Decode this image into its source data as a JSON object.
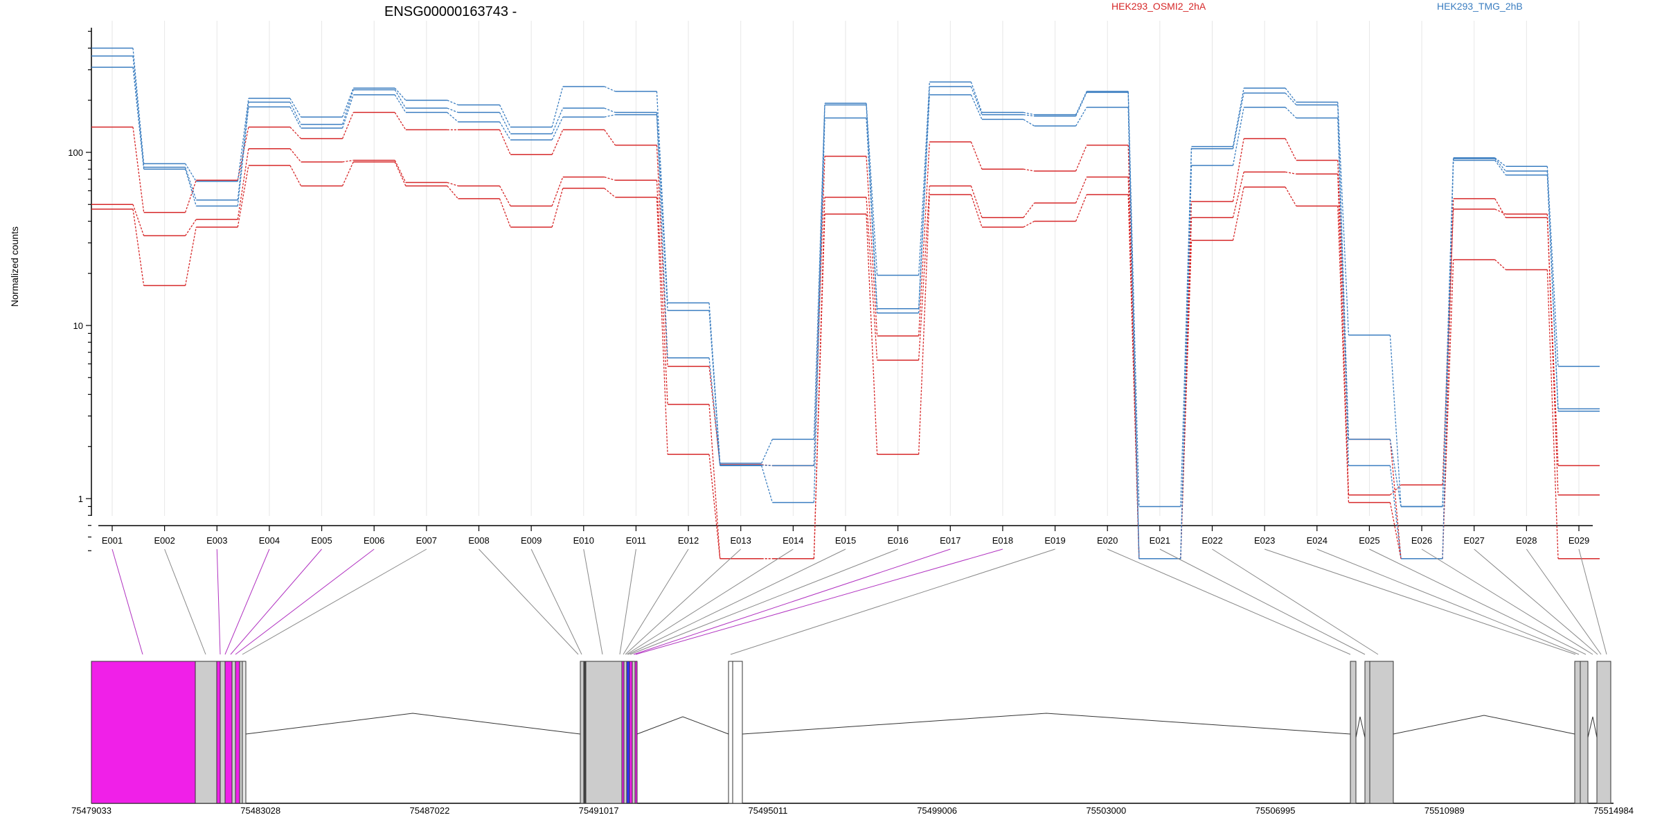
{
  "chart_data": {
    "type": "line",
    "title": "ENSG00000163743 -",
    "ylabel": "Normalized counts",
    "yscale": "log",
    "ylim": [
      0.45,
      500
    ],
    "yticks": [
      1,
      10,
      100
    ],
    "ytick_labels": [
      "1",
      "10",
      "100"
    ],
    "categories": [
      "E001",
      "E002",
      "E003",
      "E004",
      "E005",
      "E006",
      "E007",
      "E008",
      "E009",
      "E010",
      "E011",
      "E012",
      "E013",
      "E014",
      "E015",
      "E016",
      "E017",
      "E018",
      "E019",
      "E020",
      "E021",
      "E022",
      "E023",
      "E024",
      "E025",
      "E026",
      "E027",
      "E028",
      "E029"
    ],
    "legend": [
      {
        "name": "HEK293_OSMI2_2hA",
        "color": "#d62728"
      },
      {
        "name": "HEK293_TMG_2hB",
        "color": "#3a7dc0"
      }
    ],
    "series": [
      {
        "group": "HEK293_OSMI2_2hA",
        "color": "#d62728",
        "values": [
          140,
          45,
          69,
          140,
          120,
          170,
          135,
          135,
          97,
          135,
          110,
          5.8,
          1.57,
          1.55,
          95,
          8.7,
          115,
          80,
          78,
          110,
          0.45,
          52,
          120,
          90,
          2.2,
          0.45,
          54,
          42,
          1.55
        ]
      },
      {
        "group": "HEK293_OSMI2_2hA",
        "color": "#d62728",
        "values": [
          50,
          33,
          41,
          105,
          88,
          90,
          67,
          64,
          49,
          72,
          69,
          3.5,
          0.45,
          0.45,
          55,
          6.3,
          64,
          42,
          51,
          72,
          0.45,
          42,
          77,
          75,
          1.05,
          1.2,
          47,
          44,
          1.05
        ]
      },
      {
        "group": "HEK293_OSMI2_2hA",
        "color": "#d62728",
        "values": [
          47,
          17,
          37,
          84,
          64,
          88,
          64,
          54,
          37,
          62,
          55,
          1.8,
          0.45,
          0.45,
          44,
          1.8,
          57,
          37,
          40,
          57,
          0.45,
          31,
          63,
          49,
          0.95,
          0.45,
          24,
          21,
          0.45
        ]
      },
      {
        "group": "HEK293_TMG_2hB",
        "color": "#3a7dc0",
        "values": [
          400,
          86,
          68,
          205,
          160,
          235,
          200,
          188,
          140,
          240,
          225,
          13.5,
          1.6,
          2.2,
          192,
          19.5,
          255,
          170,
          165,
          225,
          0.9,
          108,
          235,
          195,
          8.8,
          0.9,
          93,
          83,
          5.8
        ]
      },
      {
        "group": "HEK293_TMG_2hB",
        "color": "#3a7dc0",
        "values": [
          360,
          82,
          53,
          195,
          145,
          230,
          180,
          170,
          128,
          180,
          170,
          12.2,
          1.56,
          1.55,
          188,
          12.5,
          240,
          165,
          162,
          222,
          0.45,
          105,
          220,
          188,
          2.2,
          0.9,
          92,
          78,
          3.3
        ]
      },
      {
        "group": "HEK293_TMG_2hB",
        "color": "#3a7dc0",
        "values": [
          310,
          80,
          49,
          183,
          138,
          215,
          170,
          150,
          118,
          160,
          165,
          6.5,
          1.55,
          0.95,
          158,
          11.8,
          215,
          155,
          142,
          182,
          0.45,
          84,
          182,
          158,
          1.55,
          0.45,
          90,
          74,
          3.2
        ]
      }
    ],
    "gene_model": {
      "coordinate_labels": [
        "75479033",
        "75483028",
        "75487022",
        "75491017",
        "75495011",
        "75499006",
        "75503000",
        "75506995",
        "75510989",
        "75514984"
      ]
    }
  }
}
